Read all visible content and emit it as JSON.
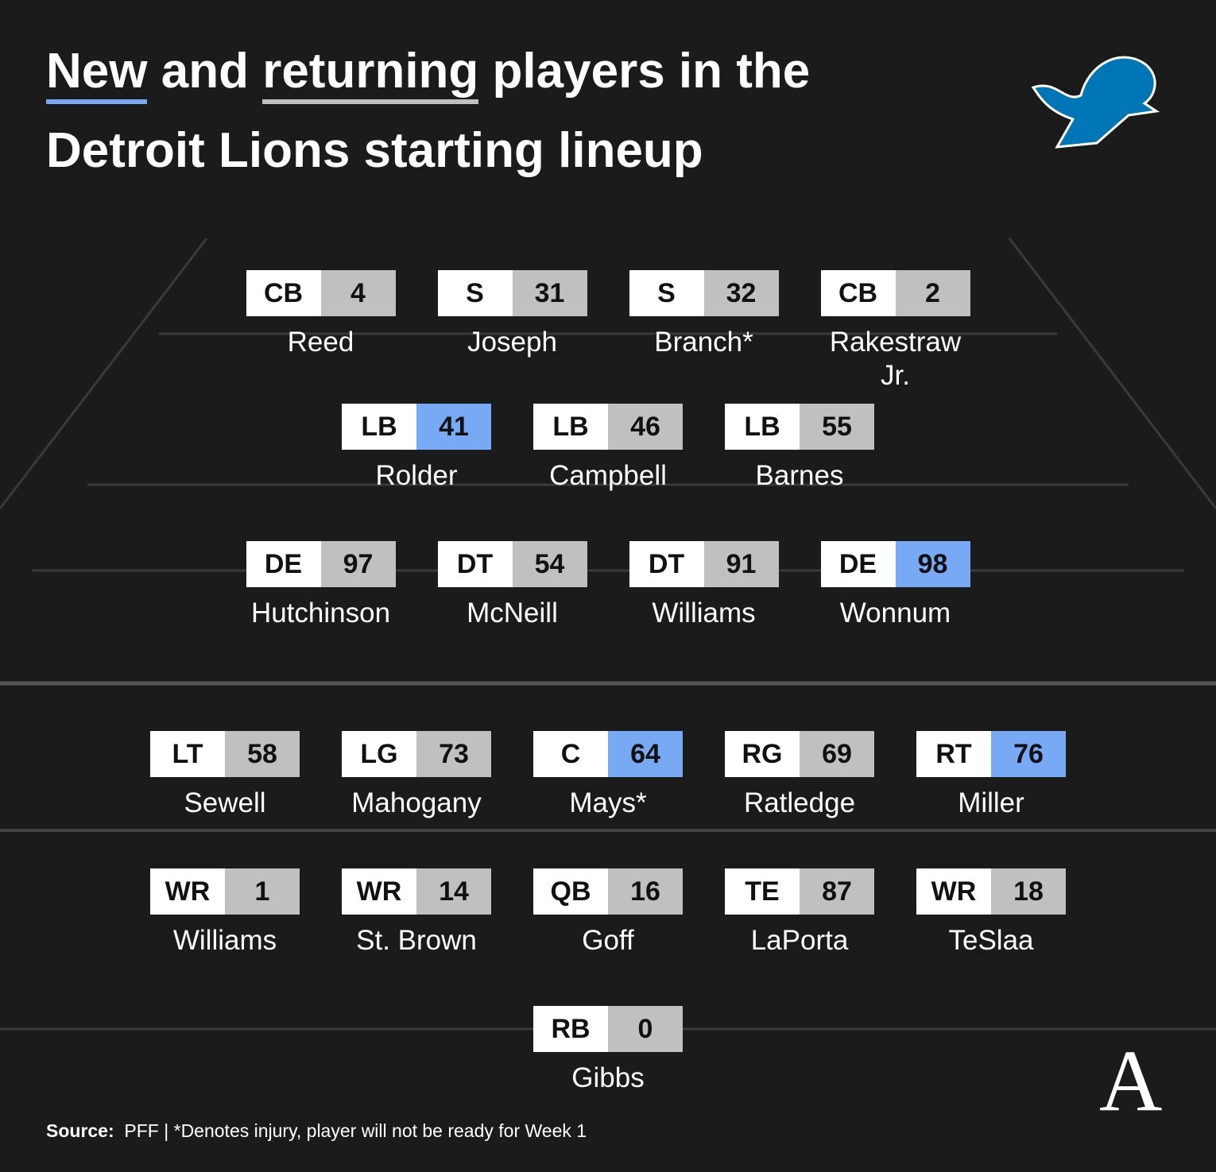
{
  "title": {
    "new": "New",
    "and": "and",
    "returning": "returning",
    "rest": "players in the Detroit Lions starting lineup"
  },
  "legend_colors": {
    "new": "#78a9f5",
    "returning": "#c0c0c0"
  },
  "rows": [
    [
      {
        "pos": "CB",
        "number": "4",
        "name": "Reed",
        "new": false
      },
      {
        "pos": "S",
        "number": "31",
        "name": "Joseph",
        "new": false
      },
      {
        "pos": "S",
        "number": "32",
        "name": "Branch*",
        "new": false
      },
      {
        "pos": "CB",
        "number": "2",
        "name": "Rakestraw Jr.",
        "new": false
      }
    ],
    [
      {
        "pos": "LB",
        "number": "41",
        "name": "Rolder",
        "new": true
      },
      {
        "pos": "LB",
        "number": "46",
        "name": "Campbell",
        "new": false
      },
      {
        "pos": "LB",
        "number": "55",
        "name": "Barnes",
        "new": false
      }
    ],
    [
      {
        "pos": "DE",
        "number": "97",
        "name": "Hutchinson",
        "new": false
      },
      {
        "pos": "DT",
        "number": "54",
        "name": "McNeill",
        "new": false
      },
      {
        "pos": "DT",
        "number": "91",
        "name": "Williams",
        "new": false
      },
      {
        "pos": "DE",
        "number": "98",
        "name": "Wonnum",
        "new": true
      }
    ],
    [
      {
        "pos": "LT",
        "number": "58",
        "name": "Sewell",
        "new": false
      },
      {
        "pos": "LG",
        "number": "73",
        "name": "Mahogany",
        "new": false
      },
      {
        "pos": "C",
        "number": "64",
        "name": "Mays*",
        "new": true
      },
      {
        "pos": "RG",
        "number": "69",
        "name": "Ratledge",
        "new": false
      },
      {
        "pos": "RT",
        "number": "76",
        "name": "Miller",
        "new": true
      }
    ],
    [
      {
        "pos": "WR",
        "number": "1",
        "name": "Williams",
        "new": false
      },
      {
        "pos": "WR",
        "number": "14",
        "name": "St. Brown",
        "new": false
      },
      {
        "pos": "QB",
        "number": "16",
        "name": "Goff",
        "new": false
      },
      {
        "pos": "TE",
        "number": "87",
        "name": "LaPorta",
        "new": false
      },
      {
        "pos": "WR",
        "number": "18",
        "name": "TeSlaa",
        "new": false
      }
    ],
    [
      {
        "pos": "RB",
        "number": "0",
        "name": "Gibbs",
        "new": false
      }
    ]
  ],
  "footer": {
    "source_label": "Source:",
    "source_text": "PFF | *Denotes injury, player will not be ready for Week 1"
  },
  "brand_mark": "A"
}
